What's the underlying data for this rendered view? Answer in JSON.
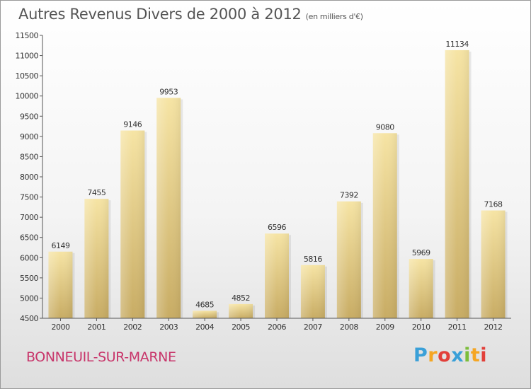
{
  "title": {
    "main": "Autres Revenus Divers de 2000 à 2012",
    "unit": "(en milliers d'€)"
  },
  "city": "BONNEUIL-SUR-MARNE",
  "logo": {
    "text": "Proxiti",
    "letters": [
      {
        "ch": "P",
        "color": "#3aa0d8"
      },
      {
        "ch": "r",
        "color": "#f5a623"
      },
      {
        "ch": "o",
        "color": "#e2403a"
      },
      {
        "ch": "x",
        "color": "#3aa0d8"
      },
      {
        "ch": "i",
        "color": "#7bbd3a"
      },
      {
        "ch": "t",
        "color": "#f5a623"
      },
      {
        "ch": "i",
        "color": "#e2403a"
      }
    ]
  },
  "colors": {
    "bar_light": "#f6e4a4",
    "bar_dark": "#c8ac64",
    "axis": "#555555",
    "text": "#333333",
    "city": "#c8356a"
  },
  "chart_data": {
    "type": "bar",
    "categories": [
      "2000",
      "2001",
      "2002",
      "2003",
      "2004",
      "2005",
      "2006",
      "2007",
      "2008",
      "2009",
      "2010",
      "2011",
      "2012"
    ],
    "values": [
      6149,
      7455,
      9146,
      9953,
      4685,
      4852,
      6596,
      5816,
      7392,
      9080,
      5969,
      11134,
      7168
    ],
    "ylim": [
      4500,
      11500
    ],
    "yticks": [
      4500,
      5000,
      5500,
      6000,
      6500,
      7000,
      7500,
      8000,
      8500,
      9000,
      9500,
      10000,
      10500,
      11000,
      11500
    ],
    "grid": false,
    "data_labels": true
  }
}
